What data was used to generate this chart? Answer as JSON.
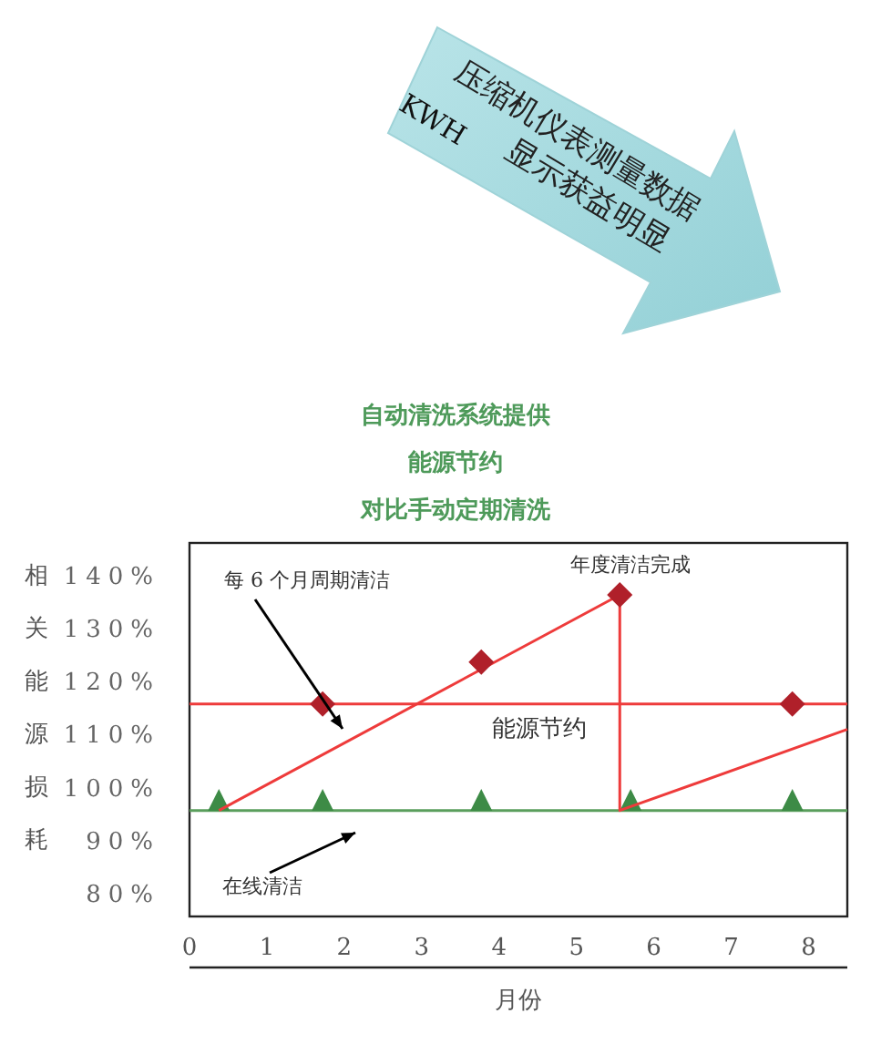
{
  "chart_data": {
    "type": "line",
    "title": "自动清洗系统提供",
    "subtitle": "能源节约",
    "xlabel": "月份",
    "ylabel": "相关能源损耗",
    "xlim": [
      0,
      8.5
    ],
    "xticks": [
      0,
      1,
      2,
      3,
      4,
      5,
      6,
      7,
      8
    ],
    "ylim": [
      75.5,
      146
    ],
    "yticks": [
      {
        "value": 80,
        "label": "80%"
      },
      {
        "value": 90,
        "label": "90%"
      },
      {
        "value": 100,
        "label": "100%"
      },
      {
        "value": 110,
        "label": "110%"
      },
      {
        "value": 120,
        "label": "120%"
      },
      {
        "value": 130,
        "label": "130%"
      },
      {
        "value": 140,
        "label": "140%"
      }
    ],
    "grid": false,
    "series": [
      {
        "color": "#5a9e5c",
        "x": [
          0,
          8.5
        ],
        "values": [
          95.5,
          95.5
        ],
        "marker": "none"
      },
      {
        "type": "scatter",
        "color": "#3d8b46",
        "x": [
          0.38,
          1.72,
          3.77,
          5.7,
          7.79
        ],
        "values": [
          97.5,
          97.5,
          97.5,
          97.5,
          97.5
        ],
        "marker": "triangle"
      },
      {
        "color": "#ee3b3b",
        "x": [
          0,
          8.5
        ],
        "values": [
          115.6,
          115.6
        ],
        "marker": "none"
      },
      {
        "color": "#ee3b3b",
        "x": [
          0.38,
          5.56,
          5.56,
          8.5
        ],
        "values": [
          95.5,
          136.2,
          95.5,
          110.8
        ],
        "marker": "none"
      },
      {
        "type": "scatter",
        "color": "#b0202a",
        "x": [
          1.72,
          3.77,
          5.56,
          7.79
        ],
        "values": [
          115.6,
          123.5,
          136.2,
          115.6
        ],
        "marker": "diamond"
      }
    ],
    "annotations": [
      "每 6 个月周期清洁",
      "对比手动定期清洗",
      {
        "text": "年度清洁完成",
        "x": 5.56,
        "y": 136.2
      },
      "能源节约",
      "在线清洁",
      "压缩机仪表测量数据",
      "KWH",
      "显示获益明显"
    ]
  }
}
